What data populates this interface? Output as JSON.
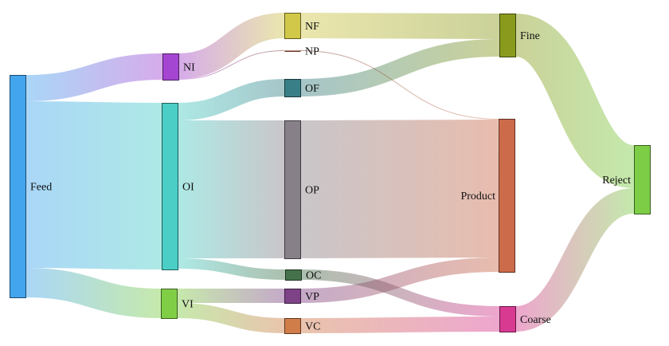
{
  "chart_data": {
    "type": "sankey",
    "nodes": [
      {
        "id": "Feed",
        "label": "Feed",
        "color": "#42a5ee"
      },
      {
        "id": "NI",
        "label": "NI",
        "color": "#a546d2"
      },
      {
        "id": "OI",
        "label": "OI",
        "color": "#4acec6"
      },
      {
        "id": "VI",
        "label": "VI",
        "color": "#80ce46"
      },
      {
        "id": "NF",
        "label": "NF",
        "color": "#d1c84a"
      },
      {
        "id": "NP",
        "label": "NP",
        "color": "#6b2f1d"
      },
      {
        "id": "OF",
        "label": "OF",
        "color": "#387f87"
      },
      {
        "id": "OP",
        "label": "OP",
        "color": "#888088"
      },
      {
        "id": "OC",
        "label": "OC",
        "color": "#45724a"
      },
      {
        "id": "VP",
        "label": "VP",
        "color": "#7e4387"
      },
      {
        "id": "VC",
        "label": "VC",
        "color": "#d07d4a"
      },
      {
        "id": "Fine",
        "label": "Fine",
        "color": "#8a9a1d"
      },
      {
        "id": "Product",
        "label": "Product",
        "color": "#cc6b4a"
      },
      {
        "id": "Coarse",
        "label": "Coarse",
        "color": "#d83a91"
      },
      {
        "id": "Reject",
        "label": "Reject",
        "color": "#7dcd47"
      }
    ],
    "links": [
      {
        "source": "Feed",
        "target": "NI",
        "value": 33
      },
      {
        "source": "Feed",
        "target": "OI",
        "value": 209
      },
      {
        "source": "Feed",
        "target": "VI",
        "value": 37
      },
      {
        "source": "NI",
        "target": "NF",
        "value": 32
      },
      {
        "source": "NI",
        "target": "NP",
        "value": 1
      },
      {
        "source": "OI",
        "target": "OF",
        "value": 22
      },
      {
        "source": "OI",
        "target": "OP",
        "value": 173
      },
      {
        "source": "OI",
        "target": "OC",
        "value": 13
      },
      {
        "source": "VI",
        "target": "VP",
        "value": 18
      },
      {
        "source": "VI",
        "target": "VC",
        "value": 19
      },
      {
        "source": "NF",
        "target": "Fine",
        "value": 32
      },
      {
        "source": "OF",
        "target": "Fine",
        "value": 22
      },
      {
        "source": "NP",
        "target": "Product",
        "value": 1
      },
      {
        "source": "OP",
        "target": "Product",
        "value": 173
      },
      {
        "source": "VP",
        "target": "Product",
        "value": 18
      },
      {
        "source": "OC",
        "target": "Coarse",
        "value": 13
      },
      {
        "source": "VC",
        "target": "Coarse",
        "value": 19
      },
      {
        "source": "Fine",
        "target": "Reject",
        "value": 54
      },
      {
        "source": "Coarse",
        "target": "Reject",
        "value": 32
      }
    ]
  }
}
